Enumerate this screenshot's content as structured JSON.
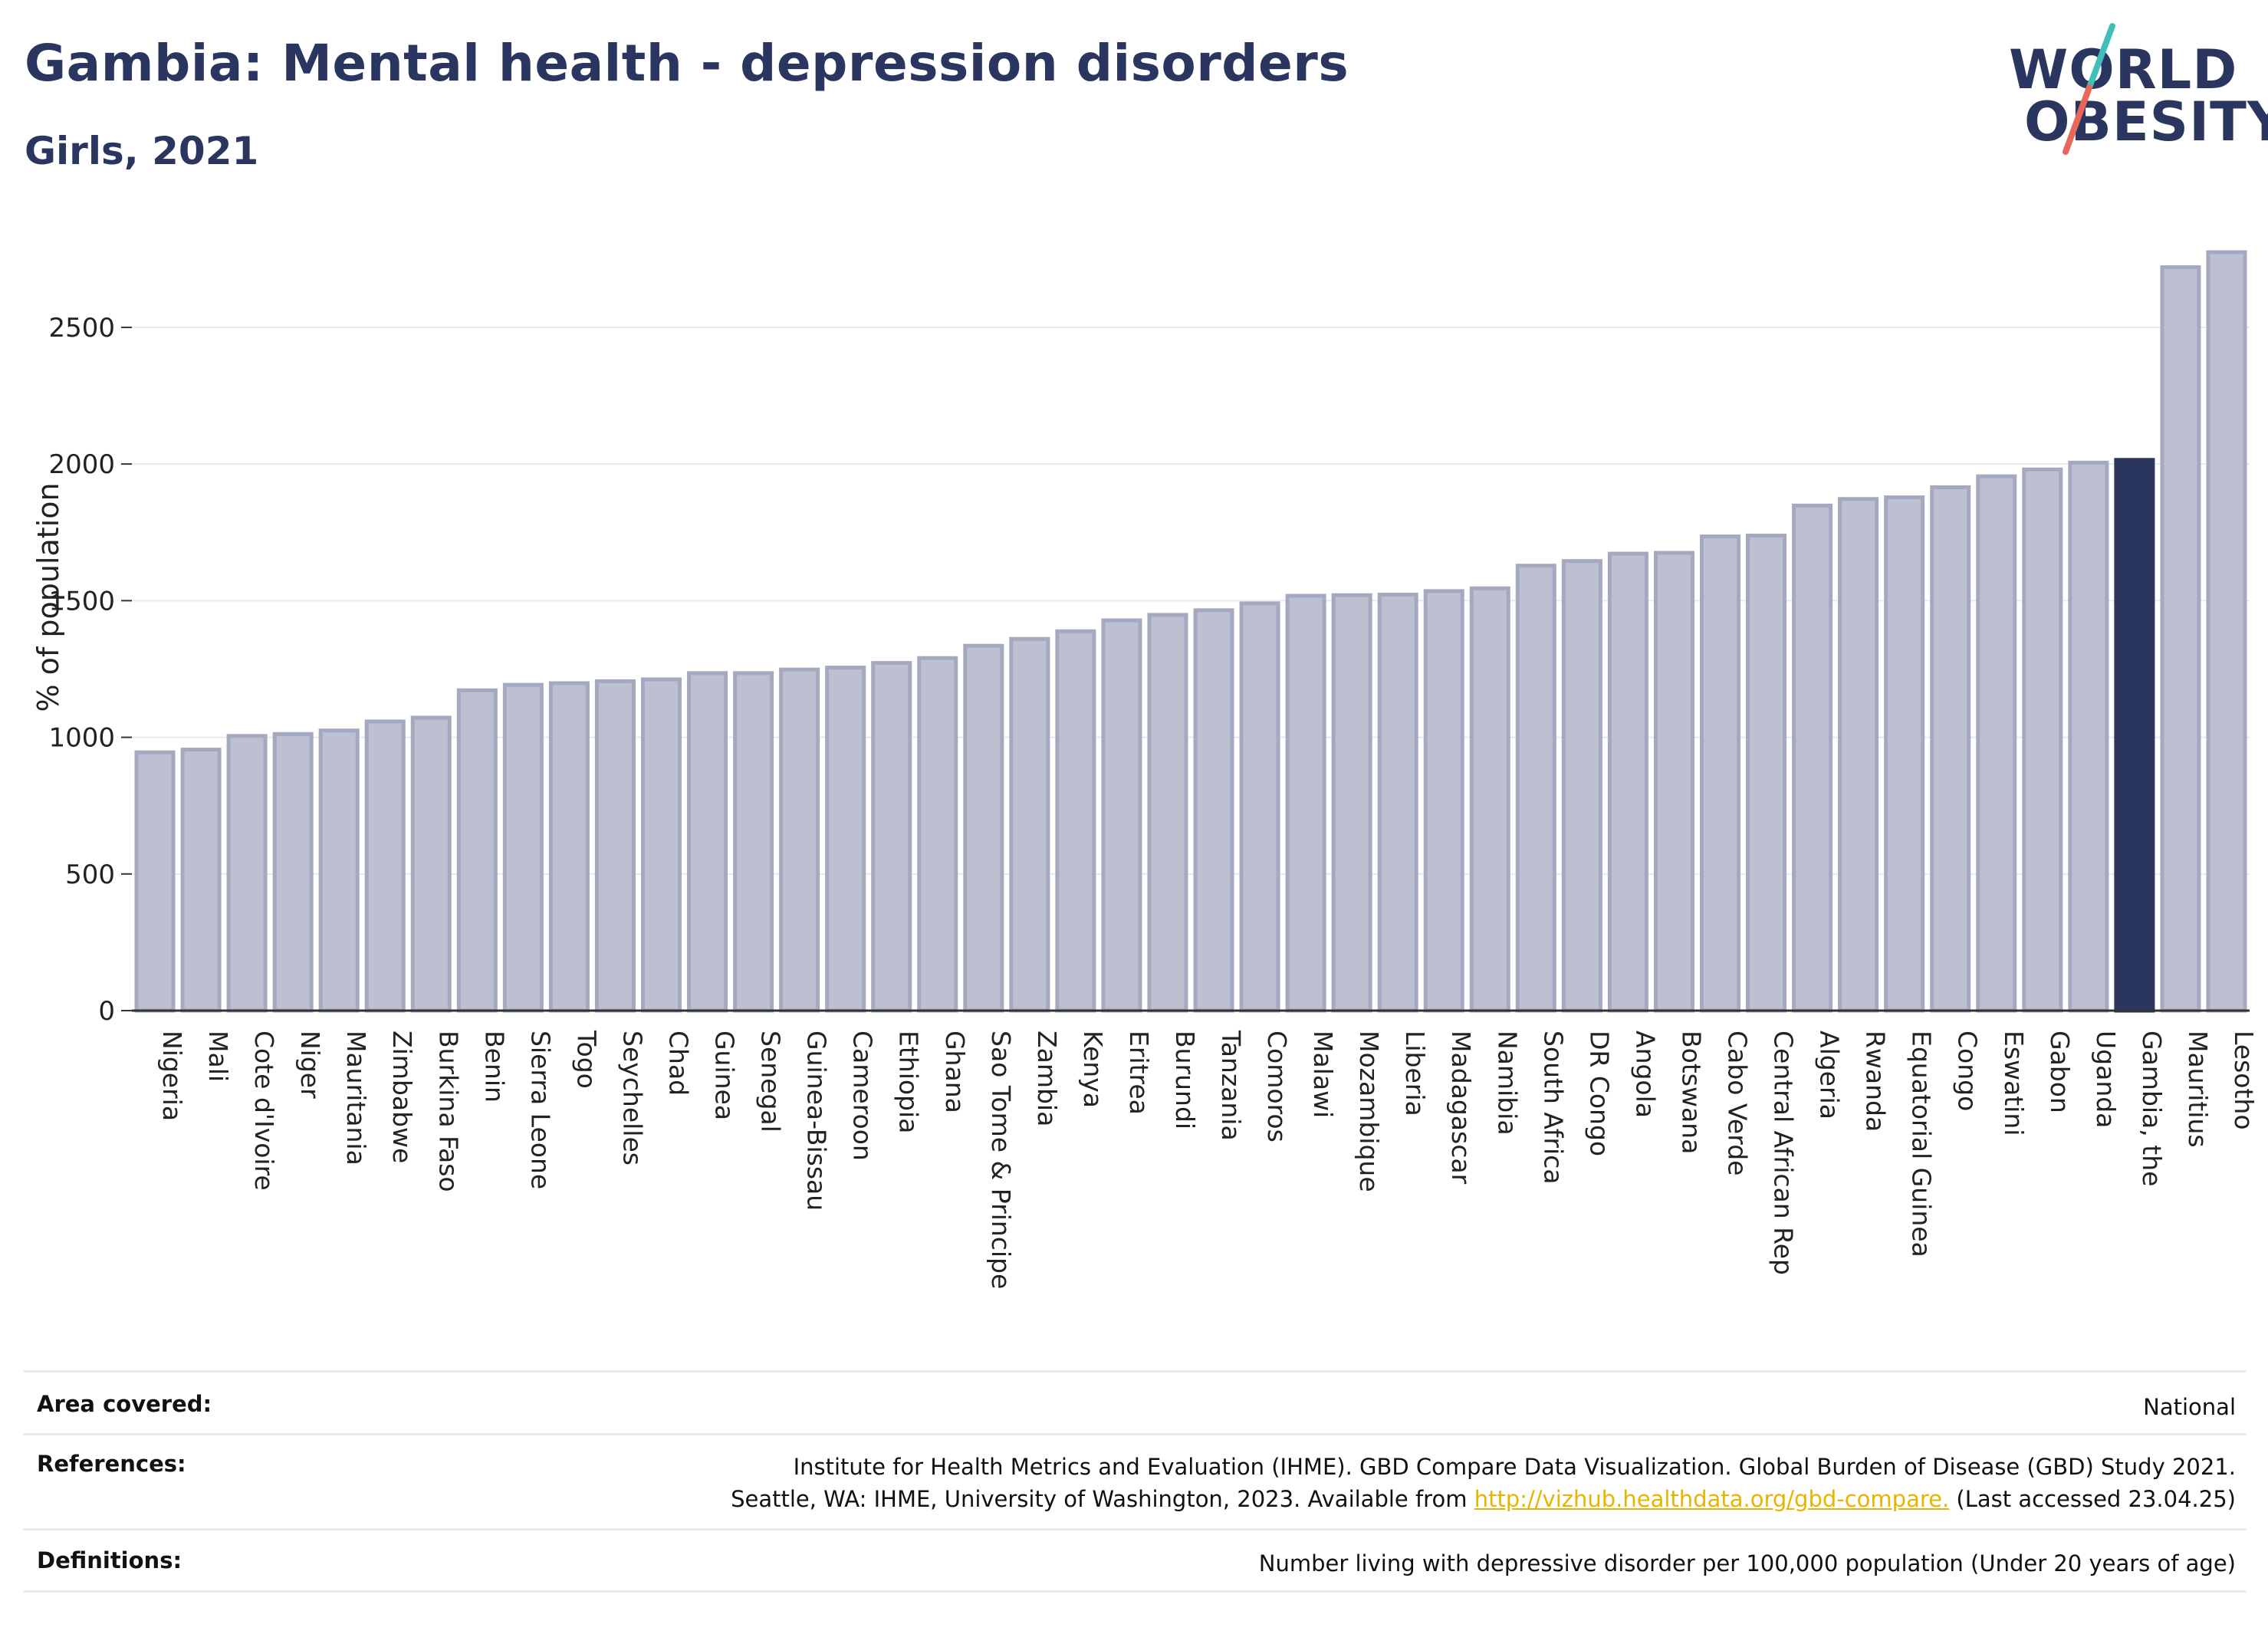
{
  "header": {
    "title": "Gambia: Mental health - depression disorders",
    "subtitle": "Girls, 2021"
  },
  "logo": {
    "line1": "WORLD",
    "line2": "OBESITY",
    "slash_colors": [
      "#3fbfb7",
      "#e8675a"
    ]
  },
  "colors": {
    "bar": "#bcc0d0",
    "bar_edge": "#a4a9bf",
    "highlight": "#2a3560",
    "grid": "#e6e9ef",
    "axis": "#333333"
  },
  "chart_data": {
    "type": "bar",
    "title": "Gambia: Mental health - depression disorders",
    "subtitle": "Girls, 2021",
    "ylabel": "% of population",
    "xlabel": "",
    "ylim": [
      0,
      2800
    ],
    "yticks": [
      0,
      500,
      1000,
      1500,
      2000,
      2500
    ],
    "grid": true,
    "highlight": "Gambia, the",
    "categories": [
      "Nigeria",
      "Mali",
      "Cote d'Ivoire",
      "Niger",
      "Mauritania",
      "Zimbabwe",
      "Burkina Faso",
      "Benin",
      "Sierra Leone",
      "Togo",
      "Seychelles",
      "Chad",
      "Guinea",
      "Senegal",
      "Guinea-Bissau",
      "Cameroon",
      "Ethiopia",
      "Ghana",
      "Sao Tome & Principe",
      "Zambia",
      "Kenya",
      "Eritrea",
      "Burundi",
      "Tanzania",
      "Comoros",
      "Malawi",
      "Mozambique",
      "Liberia",
      "Madagascar",
      "Namibia",
      "South Africa",
      "DR Congo",
      "Angola",
      "Botswana",
      "Cabo Verde",
      "Central African Rep",
      "Algeria",
      "Rwanda",
      "Equatorial Guinea",
      "Congo",
      "Eswatini",
      "Gabon",
      "Uganda",
      "Gambia, the",
      "Mauritius",
      "Lesotho"
    ],
    "values": [
      945,
      955,
      1005,
      1012,
      1025,
      1058,
      1072,
      1172,
      1192,
      1198,
      1205,
      1212,
      1235,
      1235,
      1248,
      1255,
      1272,
      1290,
      1335,
      1360,
      1388,
      1428,
      1448,
      1465,
      1490,
      1518,
      1520,
      1522,
      1535,
      1545,
      1628,
      1645,
      1672,
      1675,
      1735,
      1738,
      1848,
      1872,
      1878,
      1915,
      1955,
      1980,
      2005,
      2015,
      2720,
      2775
    ]
  },
  "footer": {
    "area_label": "Area covered:",
    "area_value": "National",
    "references_label": "References:",
    "references_line1": "Institute for Health Metrics and Evaluation (IHME). GBD Compare Data Visualization. Global Burden of Disease (GBD) Study 2021.",
    "references_line2_pre": "Seattle, WA: IHME, University of Washington, 2023. Available from ",
    "references_link": "http://vizhub.healthdata.org/gbd-compare.",
    "references_line2_post": " (Last accessed 23.04.25)",
    "definitions_label": "Definitions:",
    "definitions_value": "Number living with depressive disorder per 100,000 population (Under 20 years of age)"
  }
}
